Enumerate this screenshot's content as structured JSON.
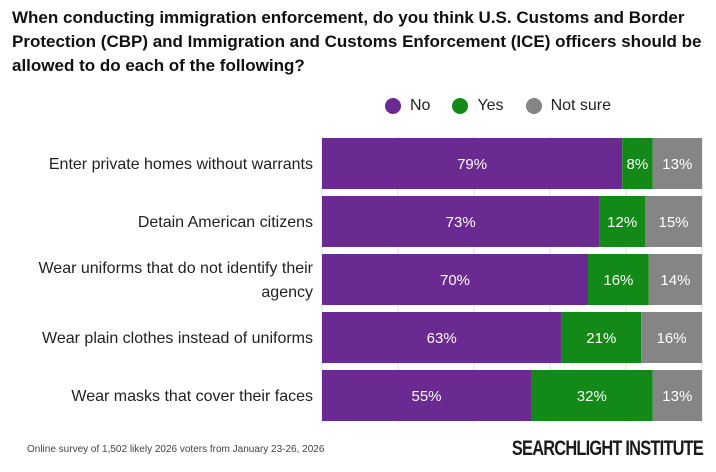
{
  "chart_data": {
    "type": "bar",
    "orientation": "horizontal-stacked",
    "title": "When conducting immigration enforcement, do you think U.S. Customs and Border Protection (CBP) and Immigration and Customs Enforcement (ICE) officers should be allowed to do each of the following?",
    "categories": [
      [
        "Enter private homes without warrants"
      ],
      [
        "Detain American citizens"
      ],
      [
        "Wear uniforms that do not identify their",
        "agency"
      ],
      [
        "Wear plain clothes instead of uniforms"
      ],
      [
        "Wear masks that cover their faces"
      ]
    ],
    "series": [
      {
        "name": "No",
        "color": "#6a2a92",
        "values": [
          79,
          73,
          70,
          63,
          55
        ]
      },
      {
        "name": "Yes",
        "color": "#138a17",
        "values": [
          8,
          12,
          16,
          21,
          32
        ]
      },
      {
        "name": "Not sure",
        "color": "#858585",
        "values": [
          13,
          15,
          14,
          16,
          13
        ]
      }
    ],
    "xlim": [
      0,
      100
    ],
    "unit": "%",
    "legend_position": "top"
  },
  "footnote": "Online survey of 1,502 likely 2026 voters from January 23-26, 2026",
  "logo": "SEARCHLIGHT INSTITUTE"
}
